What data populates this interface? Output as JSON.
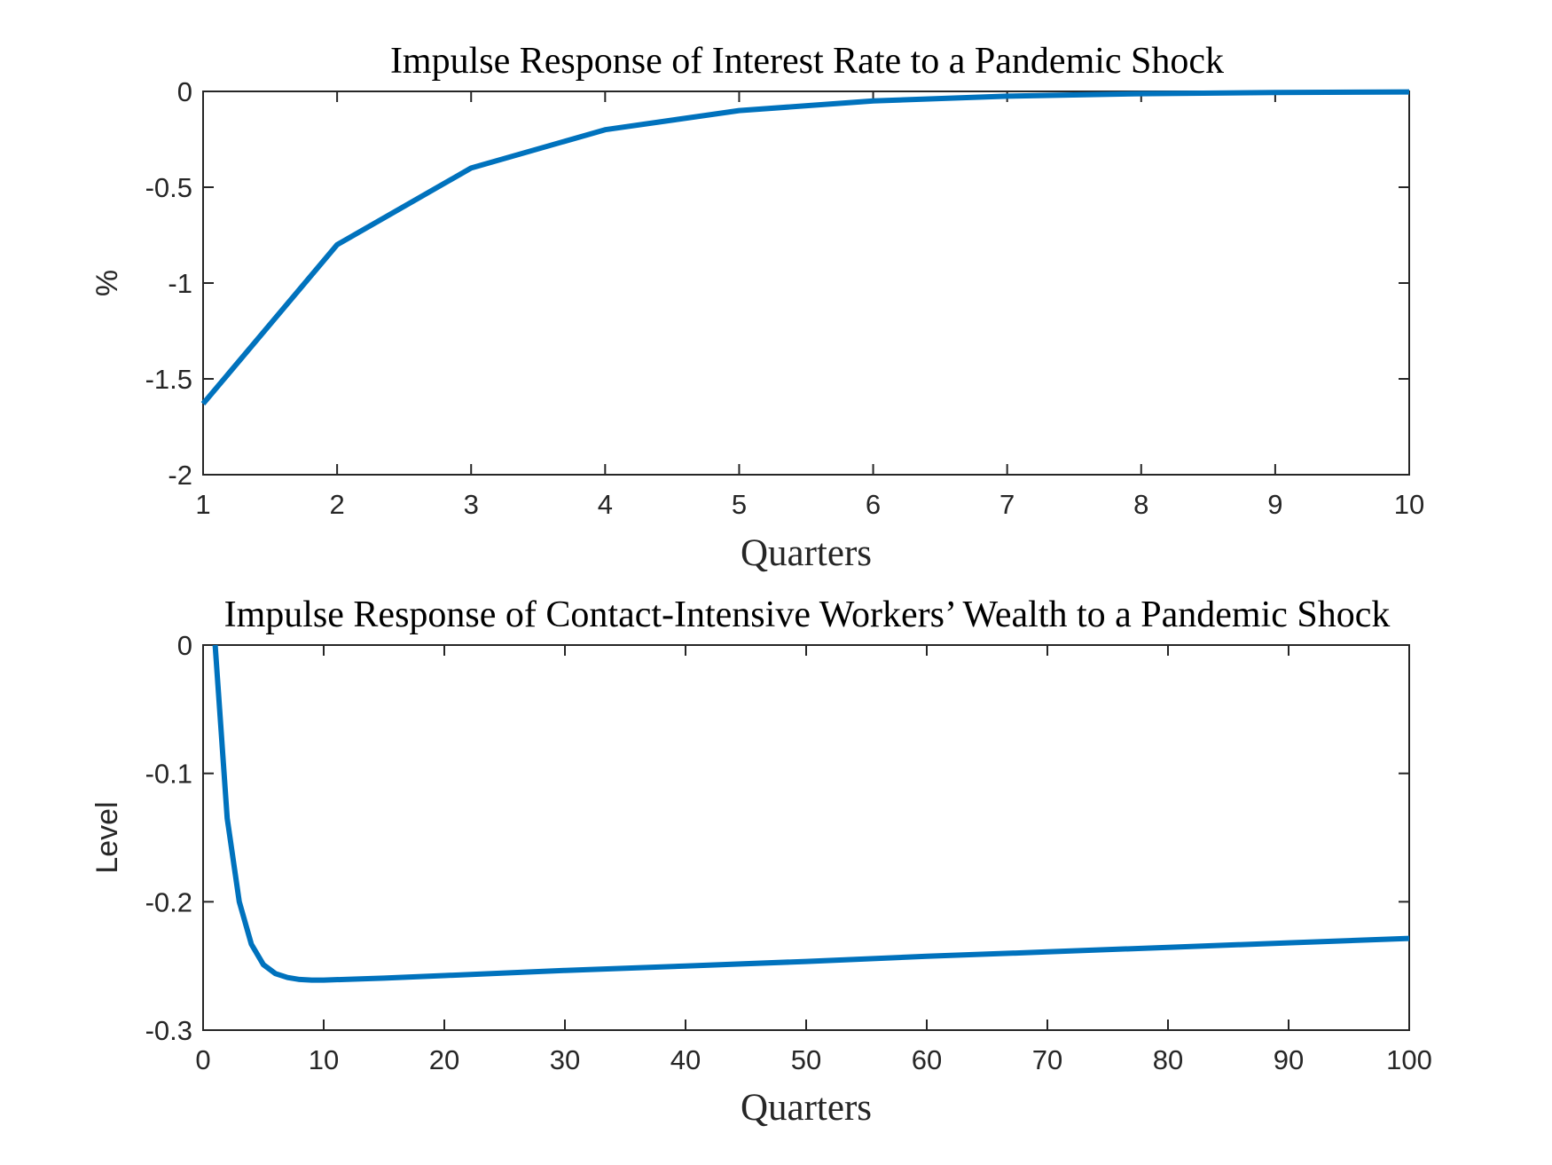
{
  "chart_data": [
    {
      "type": "line",
      "title": "Impulse Response of Interest Rate to a Pandemic Shock",
      "xlabel": "Quarters",
      "ylabel": "%",
      "xlim": [
        1,
        10
      ],
      "ylim": [
        -2,
        0
      ],
      "xticks": [
        1,
        2,
        3,
        4,
        5,
        6,
        7,
        8,
        9,
        10
      ],
      "xtick_labels": [
        "1",
        "2",
        "3",
        "4",
        "5",
        "6",
        "7",
        "8",
        "9",
        "10"
      ],
      "yticks": [
        0,
        -0.5,
        -1,
        -1.5,
        -2
      ],
      "ytick_labels": [
        "0",
        "-0.5",
        "-1",
        "-1.5",
        "-2"
      ],
      "grid": false,
      "color": "#0072BD",
      "series": [
        {
          "x": [
            1,
            2,
            3,
            4,
            5,
            6,
            7,
            8,
            9,
            10
          ],
          "y": [
            -1.63,
            -0.8,
            -0.4,
            -0.2,
            -0.1,
            -0.05,
            -0.025,
            -0.012,
            -0.006,
            -0.003
          ]
        }
      ]
    },
    {
      "type": "line",
      "title": "Impulse Response of Contact-Intensive Workers’ Wealth to a Pandemic Shock",
      "xlabel": "Quarters",
      "ylabel": "Level",
      "xlim": [
        0,
        100
      ],
      "ylim": [
        -0.3,
        0
      ],
      "xticks": [
        0,
        10,
        20,
        30,
        40,
        50,
        60,
        70,
        80,
        90,
        100
      ],
      "xtick_labels": [
        "0",
        "10",
        "20",
        "30",
        "40",
        "50",
        "60",
        "70",
        "80",
        "90",
        "100"
      ],
      "yticks": [
        0,
        -0.1,
        -0.2,
        -0.3
      ],
      "ytick_labels": [
        "0",
        "-0.1",
        "-0.2",
        "-0.3"
      ],
      "grid": false,
      "color": "#0072BD",
      "series": [
        {
          "x": [
            1,
            2,
            3,
            4,
            5,
            6,
            7,
            8,
            9,
            10,
            15,
            20,
            30,
            40,
            50,
            60,
            70,
            80,
            90,
            100
          ],
          "y": [
            0,
            -0.135,
            -0.2,
            -0.233,
            -0.249,
            -0.256,
            -0.259,
            -0.2605,
            -0.261,
            -0.261,
            -0.2595,
            -0.2575,
            -0.2535,
            -0.25,
            -0.2465,
            -0.2425,
            -0.239,
            -0.2355,
            -0.232,
            -0.2285
          ]
        }
      ]
    }
  ]
}
